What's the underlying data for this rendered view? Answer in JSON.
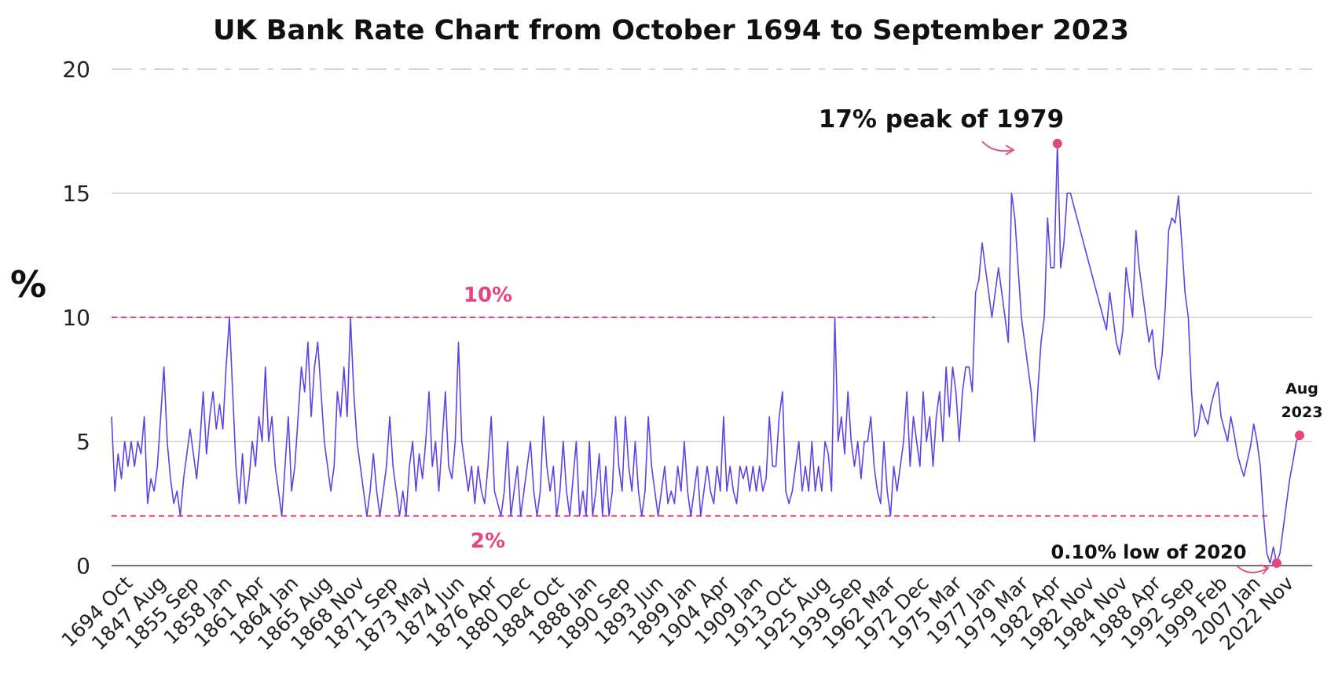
{
  "chart_data": {
    "type": "line",
    "title": "UK Bank Rate Chart from October 1694 to September 2023",
    "ylabel": "%",
    "xlabel": "",
    "ylim": [
      0,
      20
    ],
    "yticks": [
      "0",
      "5",
      "10",
      "15",
      "20"
    ],
    "grid": "horizontal",
    "x_tick_labels": [
      "1694 Oct",
      "1847 Aug",
      "1855 Sep",
      "1858 Jan",
      "1861 Apr",
      "1864 Jan",
      "1865 Aug",
      "1868 Nov",
      "1871 Sep",
      "1873 May",
      "1874 Jun",
      "1876 Apr",
      "1880 Dec",
      "1884 Oct",
      "1888 Jan",
      "1890 Sep",
      "1893 Jun",
      "1899 Jan",
      "1904 Apr",
      "1909 Jan",
      "1913 Oct",
      "1925 Aug",
      "1939 Sep",
      "1962 Mar",
      "1972 Dec",
      "1975 Mar",
      "1977 Jan",
      "1979 Mar",
      "1982 Apr",
      "1982 Nov",
      "1984 Nov",
      "1988 Apr",
      "1992 Sep",
      "1999 Feb",
      "2007 Jan",
      "2022 Nov"
    ],
    "series": [
      {
        "color": "#5b44e6",
        "values": [
          6,
          3,
          4.5,
          3.5,
          5,
          4,
          5,
          4,
          5,
          4.5,
          6,
          2.5,
          3.5,
          3,
          4,
          6,
          8,
          5,
          3.5,
          2.5,
          3,
          2,
          3.5,
          4.5,
          5.5,
          4.5,
          3.5,
          5,
          7,
          4.5,
          6,
          7,
          5.5,
          6.5,
          5.5,
          8,
          10,
          7,
          4,
          2.5,
          4.5,
          2.5,
          3.5,
          5,
          4,
          6,
          5,
          8,
          5,
          6,
          4,
          3,
          2,
          4,
          6,
          3,
          4,
          6,
          8,
          7,
          9,
          6,
          8,
          9,
          7,
          5,
          4,
          3,
          4,
          7,
          6,
          8,
          6,
          10,
          7,
          5,
          4,
          3,
          2,
          3,
          4.5,
          3,
          2,
          3,
          4,
          6,
          4,
          3,
          2,
          3,
          2,
          4,
          5,
          3,
          4.5,
          3.5,
          5,
          7,
          4,
          5,
          3,
          5,
          7,
          4,
          3.5,
          5,
          9,
          5,
          4,
          3,
          4,
          2.5,
          4,
          3,
          2.5,
          4,
          6,
          3,
          2.5,
          2,
          3,
          5,
          2,
          3,
          4,
          2,
          3,
          4,
          5,
          3,
          2,
          3,
          6,
          4,
          3,
          4,
          2,
          3,
          5,
          3,
          2,
          3.5,
          5,
          2,
          3,
          2,
          5,
          2,
          3,
          4.5,
          2,
          4,
          2,
          3,
          6,
          4,
          3,
          6,
          4,
          3,
          5,
          3,
          2,
          3,
          6,
          4,
          3,
          2,
          3,
          4,
          2.5,
          3,
          2.5,
          4,
          3,
          5,
          3,
          2,
          3,
          4,
          2,
          3,
          4,
          3,
          2.5,
          4,
          3,
          6,
          3,
          4,
          3,
          2.5,
          4,
          3.5,
          4,
          3,
          4,
          3,
          4,
          3,
          3.5,
          6,
          4,
          4,
          6,
          7,
          3,
          2.5,
          3,
          4,
          5,
          3,
          4,
          3,
          5,
          3,
          4,
          3,
          5,
          4.5,
          3,
          10,
          5,
          6,
          4.5,
          7,
          5,
          4,
          5,
          3.5,
          5,
          5,
          6,
          4,
          3,
          2.5,
          5,
          3,
          2,
          4,
          3,
          4,
          5,
          7,
          4,
          6,
          5,
          4,
          7,
          5,
          6,
          4,
          6,
          7,
          5,
          8,
          6,
          8,
          7,
          5,
          7,
          8,
          8,
          7,
          11,
          11.5,
          13,
          12,
          11,
          10,
          11,
          12,
          11,
          10,
          9,
          15,
          14,
          12,
          10,
          9,
          8,
          7,
          5,
          7,
          9,
          10,
          14,
          12,
          12,
          17,
          12,
          13,
          15,
          15,
          14.5,
          14,
          13.5,
          13,
          12.5,
          12,
          11.5,
          11,
          10.5,
          10,
          9.5,
          11,
          10,
          9,
          8.5,
          9.5,
          12,
          11,
          10,
          13.5,
          12,
          11,
          10,
          9,
          9.5,
          8,
          7.5,
          8.5,
          10.5,
          13.5,
          14,
          13.8,
          14.9,
          13,
          11,
          10,
          7,
          5.2,
          5.5,
          6.5,
          6,
          5.7,
          6.5,
          7,
          7.4,
          6,
          5.5,
          5,
          6,
          5.3,
          4.5,
          4,
          3.6,
          4.2,
          4.8,
          5.7,
          5,
          4,
          2,
          0.5,
          0.1,
          0.75,
          0.1,
          0.5,
          1.5,
          2.5,
          3.5,
          4.2,
          5,
          5.25
        ]
      }
    ],
    "reference_lines": [
      {
        "value": 10,
        "label": "10%"
      },
      {
        "value": 2,
        "label": "2%"
      }
    ],
    "annotations": [
      {
        "label": "17% peak of 1979",
        "value": 17
      },
      {
        "label": "0.10% low of 2020",
        "value": 0.1
      },
      {
        "label_line1": "Aug",
        "label_line2": "2023",
        "value": 5.25
      }
    ]
  }
}
